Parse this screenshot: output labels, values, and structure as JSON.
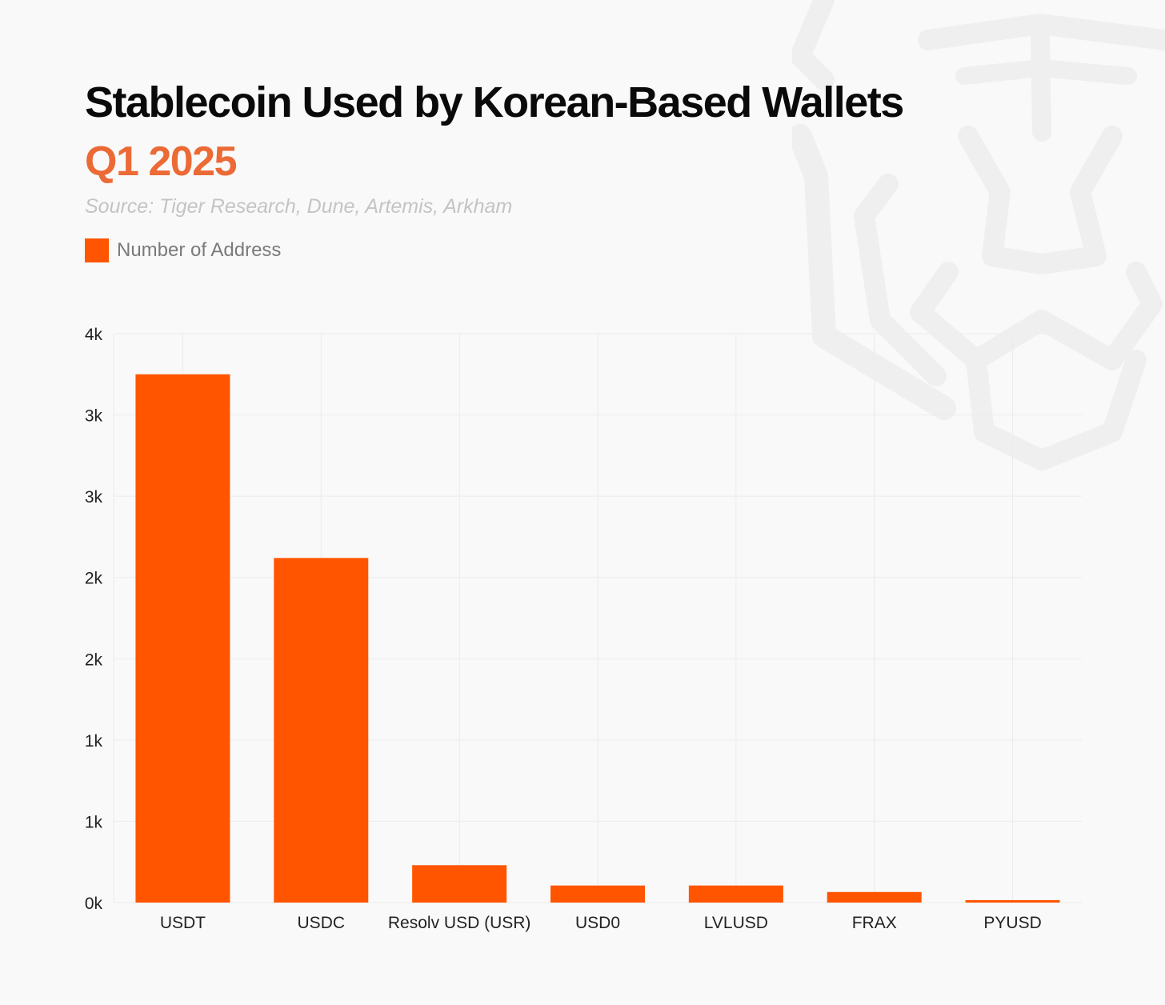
{
  "header": {
    "title": "Stablecoin Used by Korean-Based Wallets",
    "subtitle": "Q1 2025",
    "source": "Source: Tiger Research, Dune, Artemis, Arkham"
  },
  "colors": {
    "bar": "#ff5500",
    "subtitle": "#eb6a36",
    "grid": "#ececec",
    "watermark": "#efefef"
  },
  "watermark": {
    "icon": "tiger-head-logo"
  },
  "chart_data": {
    "type": "bar",
    "title": "Stablecoin Used by Korean-Based Wallets",
    "subtitle": "Q1 2025",
    "xlabel": "",
    "ylabel": "",
    "legend": [
      "Number of Address"
    ],
    "legend_position": "top-left",
    "grid": true,
    "categories": [
      "USDT",
      "USDC",
      "Resolv USD (USR)",
      "USD0",
      "LVLUSD",
      "FRAX",
      "PYUSD"
    ],
    "series": [
      {
        "name": "Number of Address",
        "values": [
          3250,
          2120,
          230,
          105,
          105,
          65,
          15
        ]
      }
    ],
    "ylim": [
      0,
      3500
    ],
    "y_ticks": [
      0,
      500,
      1000,
      1500,
      2000,
      2500,
      3000,
      3500
    ],
    "y_tick_labels": [
      "0k",
      "1k",
      "1k",
      "2k",
      "2k",
      "3k",
      "3k",
      "4k"
    ]
  }
}
